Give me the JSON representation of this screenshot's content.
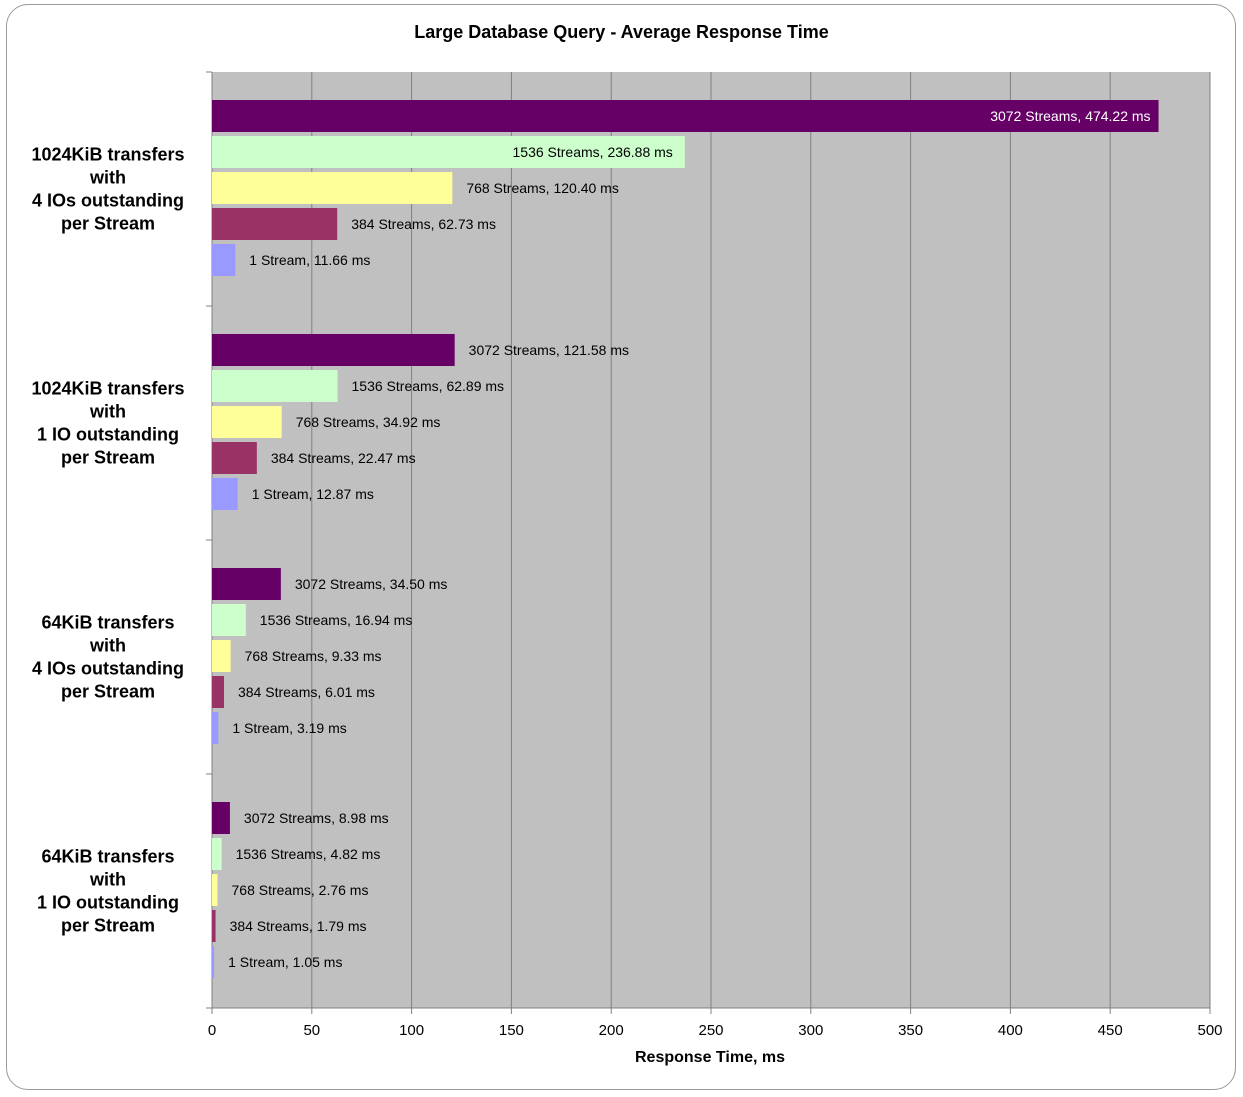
{
  "chart_data": {
    "type": "bar",
    "orientation": "horizontal",
    "title": "Large Database Query - Average Response Time",
    "xlabel": "Response Time, ms",
    "xlim": [
      0,
      500
    ],
    "xticks": [
      "0",
      "50",
      "100",
      "150",
      "200",
      "250",
      "300",
      "350",
      "400",
      "450",
      "500"
    ],
    "grid": true,
    "plot_background": "#c0c0c0",
    "categories": [
      {
        "lines": [
          "1024KiB transfers",
          "with",
          "4 IOs outstanding",
          "per Stream"
        ],
        "bars": [
          {
            "series": "3072 Streams",
            "value": 474.22,
            "label": "3072 Streams, 474.22 ms"
          },
          {
            "series": "1536 Streams",
            "value": 236.88,
            "label": "1536 Streams, 236.88 ms"
          },
          {
            "series": "768 Streams",
            "value": 120.4,
            "label": "768 Streams, 120.40 ms"
          },
          {
            "series": "384 Streams",
            "value": 62.73,
            "label": "384 Streams, 62.73 ms"
          },
          {
            "series": "1 Stream",
            "value": 11.66,
            "label": "1 Stream, 11.66 ms"
          }
        ]
      },
      {
        "lines": [
          "1024KiB transfers",
          "with",
          "1 IO outstanding",
          "per Stream"
        ],
        "bars": [
          {
            "series": "3072 Streams",
            "value": 121.58,
            "label": "3072 Streams, 121.58 ms"
          },
          {
            "series": "1536 Streams",
            "value": 62.89,
            "label": "1536 Streams, 62.89 ms"
          },
          {
            "series": "768 Streams",
            "value": 34.92,
            "label": "768 Streams, 34.92 ms"
          },
          {
            "series": "384 Streams",
            "value": 22.47,
            "label": "384 Streams, 22.47 ms"
          },
          {
            "series": "1 Stream",
            "value": 12.87,
            "label": "1 Stream, 12.87 ms"
          }
        ]
      },
      {
        "lines": [
          "64KiB transfers",
          "with",
          "4 IOs outstanding",
          "per Stream"
        ],
        "bars": [
          {
            "series": "3072 Streams",
            "value": 34.5,
            "label": "3072 Streams, 34.50 ms"
          },
          {
            "series": "1536 Streams",
            "value": 16.94,
            "label": "1536 Streams, 16.94 ms"
          },
          {
            "series": "768 Streams",
            "value": 9.33,
            "label": "768 Streams, 9.33 ms"
          },
          {
            "series": "384 Streams",
            "value": 6.01,
            "label": "384 Streams, 6.01 ms"
          },
          {
            "series": "1 Stream",
            "value": 3.19,
            "label": "1 Stream, 3.19 ms"
          }
        ]
      },
      {
        "lines": [
          "64KiB transfers",
          "with",
          "1 IO outstanding",
          "per Stream"
        ],
        "bars": [
          {
            "series": "3072 Streams",
            "value": 8.98,
            "label": "3072 Streams, 8.98 ms"
          },
          {
            "series": "1536 Streams",
            "value": 4.82,
            "label": "1536 Streams, 4.82 ms"
          },
          {
            "series": "768 Streams",
            "value": 2.76,
            "label": "768 Streams, 2.76 ms"
          },
          {
            "series": "384 Streams",
            "value": 1.79,
            "label": "384 Streams, 1.79 ms"
          },
          {
            "series": "1 Stream",
            "value": 1.05,
            "label": "1 Stream, 1.05 ms"
          }
        ]
      }
    ],
    "series_colors": {
      "3072 Streams": "#660066",
      "1536 Streams": "#ccffcc",
      "768 Streams": "#ffff99",
      "384 Streams": "#993366",
      "1 Stream": "#9999ff"
    },
    "label_colors": {
      "3072 Streams": "#ffffff",
      "default": "#000000"
    }
  }
}
